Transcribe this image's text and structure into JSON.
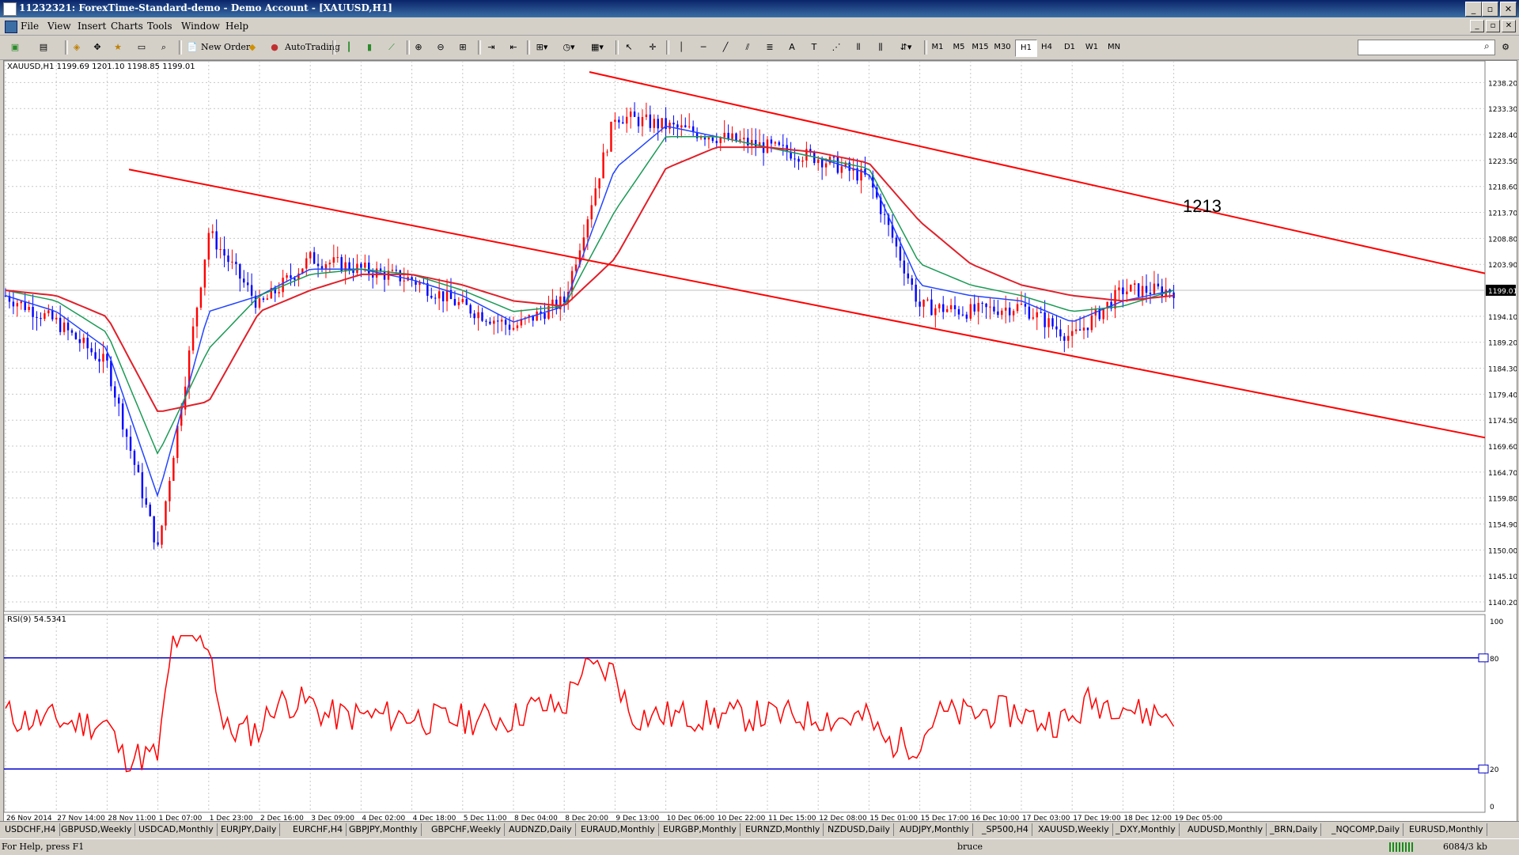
{
  "window": {
    "title": "11232321: ForexTime-Standard-demo - Demo Account - [XAUUSD,H1]",
    "buttons": [
      "_",
      "▫",
      "✕"
    ]
  },
  "menu": [
    "File",
    "View",
    "Insert",
    "Charts",
    "Tools",
    "Window",
    "Help"
  ],
  "toolbar": {
    "new_order": "New Order",
    "autotrading": "AutoTrading",
    "timeframes": [
      "M1",
      "M5",
      "M15",
      "M30",
      "H1",
      "H4",
      "D1",
      "W1",
      "MN"
    ],
    "active_timeframe": "H1",
    "icons": [
      "new-chart-icon",
      "profiles-icon",
      "market-watch-icon",
      "navigator-icon",
      "terminal-icon",
      "tester-icon",
      "new-order-icon",
      "gold-icon",
      "autotrading-icon",
      "bar-chart-icon",
      "candlestick-icon",
      "line-chart-icon",
      "zoom-in-icon",
      "zoom-out-icon",
      "tile-icon",
      "autoscroll-icon",
      "chart-shift-icon",
      "indicators-icon",
      "periods-icon",
      "templates-icon",
      "cursor-icon",
      "crosshair-icon",
      "vertical-line-icon",
      "horizontal-line-icon",
      "trendline-icon",
      "equidistant-channel-icon",
      "fibonacci-icon",
      "text-icon",
      "text-label-icon",
      "fibo-fan-icon",
      "gann-icon",
      "arrows-icon"
    ]
  },
  "chart": {
    "symbol_info": "XAUUSD,H1  1199.69 1201.10 1198.85 1199.01",
    "current_price": "1199.01",
    "annotation": "1213",
    "price_ticks": [
      "1238.20",
      "1233.30",
      "1228.40",
      "1223.50",
      "1218.60",
      "1213.70",
      "1208.80",
      "1203.90",
      "1199.01",
      "1194.10",
      "1189.20",
      "1184.30",
      "1179.40",
      "1174.50",
      "1169.60",
      "1164.70",
      "1159.80",
      "1154.90",
      "1150.00",
      "1145.10",
      "1140.20"
    ],
    "time_ticks": [
      "26 Nov 2014",
      "27 Nov 14:00",
      "28 Nov 11:00",
      "1 Dec 07:00",
      "1 Dec 23:00",
      "2 Dec 16:00",
      "3 Dec 09:00",
      "4 Dec 02:00",
      "4 Dec 18:00",
      "5 Dec 11:00",
      "8 Dec 04:00",
      "8 Dec 20:00",
      "9 Dec 13:00",
      "10 Dec 06:00",
      "10 Dec 22:00",
      "11 Dec 15:00",
      "12 Dec 08:00",
      "15 Dec 01:00",
      "15 Dec 17:00",
      "16 Dec 10:00",
      "17 Dec 03:00",
      "17 Dec 19:00",
      "18 Dec 12:00",
      "19 Dec 05:00"
    ],
    "colors": {
      "bull": "#ff0000",
      "bear": "#0000ff",
      "ma_fast": "#2244ff",
      "ma_mid": "#1a9a55",
      "ma_slow": "#e0202a",
      "trendline": "#ff0000",
      "rsi": "#ff0000",
      "rsi_levels": "#0000cc",
      "grid": "#c8c8c8"
    }
  },
  "rsi": {
    "label": "RSI(9) 54.5341",
    "ticks": [
      "100",
      "80",
      "20",
      "0"
    ],
    "level_labels": [
      "80",
      "20"
    ]
  },
  "chart_data": {
    "type": "line",
    "title": "XAUUSD,H1",
    "x": [
      "26 Nov 2014",
      "27 Nov 14:00",
      "28 Nov 11:00",
      "1 Dec 07:00",
      "1 Dec 23:00",
      "2 Dec 16:00",
      "3 Dec 09:00",
      "4 Dec 02:00",
      "4 Dec 18:00",
      "5 Dec 11:00",
      "8 Dec 04:00",
      "8 Dec 20:00",
      "9 Dec 13:00",
      "10 Dec 06:00",
      "10 Dec 22:00",
      "11 Dec 15:00",
      "12 Dec 08:00",
      "15 Dec 01:00",
      "15 Dec 17:00",
      "16 Dec 10:00",
      "17 Dec 03:00",
      "17 Dec 19:00",
      "18 Dec 12:00",
      "19 Dec 05:00"
    ],
    "series": [
      {
        "values": [
          1198,
          1193,
          1185,
          1150,
          1210,
          1196,
          1205,
          1203,
          1201,
          1196,
          1192,
          1197,
          1232,
          1230,
          1228,
          1226,
          1224,
          1220,
          1196,
          1195,
          1196,
          1190,
          1199,
          1199
        ]
      },
      {
        "values": [
          1198,
          1195,
          1188,
          1160,
          1195,
          1198,
          1203,
          1203,
          1201,
          1198,
          1193,
          1196,
          1222,
          1230,
          1228,
          1226,
          1224,
          1221,
          1200,
          1198,
          1197,
          1193,
          1197,
          1199
        ]
      },
      {
        "values": [
          1199,
          1197,
          1191,
          1168,
          1188,
          1198,
          1202,
          1203,
          1202,
          1199,
          1195,
          1196,
          1214,
          1228,
          1228,
          1226,
          1224,
          1222,
          1204,
          1200,
          1198,
          1195,
          1196,
          1199
        ]
      },
      {
        "values": [
          1199,
          1198,
          1194,
          1176,
          1178,
          1195,
          1199,
          1202,
          1202,
          1200,
          1197,
          1196,
          1205,
          1222,
          1226,
          1226,
          1225,
          1223,
          1212,
          1204,
          1200,
          1198,
          1197,
          1198
        ]
      }
    ],
    "ylim": [
      1140.2,
      1240.5
    ]
  },
  "tabs": [
    "USDCHF,H4",
    "GBPUSD,Weekly",
    "USDCAD,Monthly",
    "EURJPY,Daily",
    "EURCHF,H4",
    "GBPJPY,Monthly",
    "GBPCHF,Weekly",
    "AUDNZD,Daily",
    "EURAUD,Monthly",
    "EURGBP,Monthly",
    "EURNZD,Monthly",
    "NZDUSD,Daily",
    "AUDJPY,Monthly",
    "_SP500,H4",
    "XAUUSD,Weekly",
    "_DXY,Monthly",
    "AUDUSD,Monthly",
    "_BRN,Daily",
    "_NQCOMP,Daily",
    "EURUSD,Monthly"
  ],
  "status": {
    "help": "For Help, press F1",
    "profile": "bruce",
    "traffic": "6084/3 kb"
  }
}
